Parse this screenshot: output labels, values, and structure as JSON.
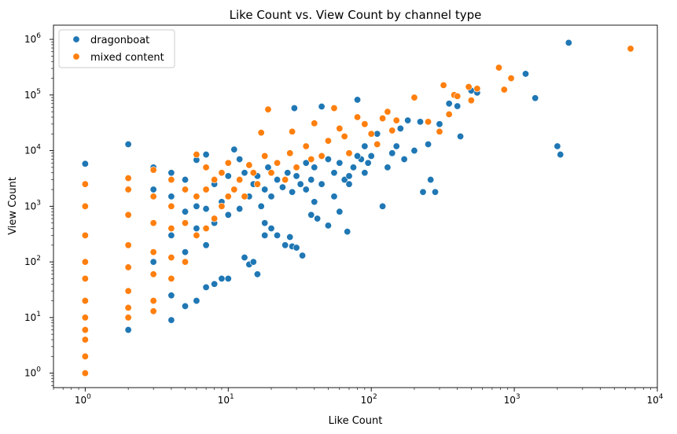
{
  "chart_data": {
    "type": "scatter",
    "title": "Like Count vs. View Count by channel type",
    "xlabel": "Like Count",
    "ylabel": "View Count",
    "xscale": "log",
    "yscale": "log",
    "xlim": [
      0.6,
      10000
    ],
    "ylim": [
      0.55,
      1800000
    ],
    "xticks": [
      {
        "value": 1,
        "base": "10",
        "exp": "0"
      },
      {
        "value": 10,
        "base": "10",
        "exp": "1"
      },
      {
        "value": 100,
        "base": "10",
        "exp": "2"
      },
      {
        "value": 1000,
        "base": "10",
        "exp": "3"
      },
      {
        "value": 10000,
        "base": "10",
        "exp": "4"
      }
    ],
    "yticks": [
      {
        "value": 1,
        "base": "10",
        "exp": "0"
      },
      {
        "value": 10,
        "base": "10",
        "exp": "1"
      },
      {
        "value": 100,
        "base": "10",
        "exp": "2"
      },
      {
        "value": 1000,
        "base": "10",
        "exp": "3"
      },
      {
        "value": 10000,
        "base": "10",
        "exp": "4"
      },
      {
        "value": 100000,
        "base": "10",
        "exp": "5"
      },
      {
        "value": 1000000,
        "base": "10",
        "exp": "6"
      }
    ],
    "legend": {
      "position": "top-left"
    },
    "grid": false,
    "series": [
      {
        "name": "dragonboat",
        "color": "#1f77b4",
        "points": [
          [
            1,
            5800
          ],
          [
            2,
            13000
          ],
          [
            2,
            6
          ],
          [
            4,
            9
          ],
          [
            4,
            25
          ],
          [
            5,
            16
          ],
          [
            6,
            20
          ],
          [
            6,
            6800
          ],
          [
            7,
            8500
          ],
          [
            7,
            35
          ],
          [
            8,
            40
          ],
          [
            9,
            50
          ],
          [
            10,
            50
          ],
          [
            11,
            10500
          ],
          [
            12,
            7000
          ],
          [
            13,
            120
          ],
          [
            14,
            90
          ],
          [
            15,
            100
          ],
          [
            16,
            60
          ],
          [
            18,
            500
          ],
          [
            18,
            300
          ],
          [
            20,
            400
          ],
          [
            22,
            300
          ],
          [
            25,
            200
          ],
          [
            27,
            280
          ],
          [
            28,
            190
          ],
          [
            29,
            58000
          ],
          [
            30,
            180
          ],
          [
            33,
            130
          ],
          [
            35,
            2000
          ],
          [
            38,
            700
          ],
          [
            40,
            1200
          ],
          [
            42,
            600
          ],
          [
            45,
            62000
          ],
          [
            50,
            450
          ],
          [
            55,
            1500
          ],
          [
            60,
            800
          ],
          [
            65,
            3000
          ],
          [
            68,
            350
          ],
          [
            70,
            2500
          ],
          [
            75,
            5000
          ],
          [
            80,
            82000
          ],
          [
            85,
            7000
          ],
          [
            90,
            4000
          ],
          [
            95,
            6000
          ],
          [
            100,
            8000
          ],
          [
            110,
            20000
          ],
          [
            120,
            1000
          ],
          [
            130,
            5000
          ],
          [
            140,
            9000
          ],
          [
            150,
            12000
          ],
          [
            160,
            25000
          ],
          [
            170,
            7000
          ],
          [
            180,
            35000
          ],
          [
            200,
            10000
          ],
          [
            220,
            33000
          ],
          [
            230,
            1800
          ],
          [
            250,
            13000
          ],
          [
            260,
            3000
          ],
          [
            280,
            1800
          ],
          [
            300,
            30000
          ],
          [
            350,
            70000
          ],
          [
            400,
            63000
          ],
          [
            420,
            18000
          ],
          [
            500,
            120000
          ],
          [
            550,
            110000
          ],
          [
            1200,
            240000
          ],
          [
            1400,
            88000
          ],
          [
            2000,
            12000
          ],
          [
            2100,
            8500
          ],
          [
            2400,
            870000
          ],
          [
            3,
            100
          ],
          [
            3,
            500
          ],
          [
            3,
            2000
          ],
          [
            3,
            5000
          ],
          [
            4,
            300
          ],
          [
            4,
            1500
          ],
          [
            4,
            4000
          ],
          [
            5,
            150
          ],
          [
            5,
            800
          ],
          [
            5,
            3000
          ],
          [
            6,
            400
          ],
          [
            6,
            1000
          ],
          [
            7,
            200
          ],
          [
            7,
            900
          ],
          [
            8,
            500
          ],
          [
            8,
            2500
          ],
          [
            9,
            1200
          ],
          [
            10,
            700
          ],
          [
            10,
            3500
          ],
          [
            11,
            2000
          ],
          [
            12,
            900
          ],
          [
            13,
            4000
          ],
          [
            14,
            1500
          ],
          [
            15,
            2500
          ],
          [
            16,
            3500
          ],
          [
            17,
            1000
          ],
          [
            18,
            2000
          ],
          [
            19,
            5000
          ],
          [
            20,
            1500
          ],
          [
            22,
            3000
          ],
          [
            24,
            2200
          ],
          [
            26,
            4000
          ],
          [
            28,
            1800
          ],
          [
            30,
            3500
          ],
          [
            32,
            2500
          ],
          [
            35,
            6000
          ],
          [
            38,
            3000
          ],
          [
            40,
            5000
          ],
          [
            45,
            2500
          ],
          [
            50,
            7000
          ],
          [
            55,
            4000
          ],
          [
            60,
            6000
          ],
          [
            70,
            3500
          ],
          [
            80,
            8000
          ],
          [
            90,
            12000
          ]
        ]
      },
      {
        "name": "mixed content",
        "color": "#ff7f0e",
        "points": [
          [
            1,
            1
          ],
          [
            1,
            2
          ],
          [
            1,
            4
          ],
          [
            1,
            6
          ],
          [
            1,
            10
          ],
          [
            1,
            20
          ],
          [
            1,
            50
          ],
          [
            1,
            100
          ],
          [
            1,
            300
          ],
          [
            1,
            1000
          ],
          [
            1,
            2500
          ],
          [
            2,
            10
          ],
          [
            2,
            15
          ],
          [
            2,
            30
          ],
          [
            2,
            80
          ],
          [
            2,
            200
          ],
          [
            2,
            700
          ],
          [
            2,
            2000
          ],
          [
            2,
            3200
          ],
          [
            3,
            13
          ],
          [
            3,
            20
          ],
          [
            3,
            60
          ],
          [
            3,
            150
          ],
          [
            3,
            500
          ],
          [
            3,
            1500
          ],
          [
            3,
            4500
          ],
          [
            4,
            50
          ],
          [
            4,
            120
          ],
          [
            4,
            400
          ],
          [
            4,
            1000
          ],
          [
            4,
            3000
          ],
          [
            5,
            100
          ],
          [
            5,
            500
          ],
          [
            5,
            2000
          ],
          [
            6,
            8500
          ],
          [
            6,
            300
          ],
          [
            6,
            1500
          ],
          [
            7,
            400
          ],
          [
            7,
            2000
          ],
          [
            7,
            5000
          ],
          [
            8,
            600
          ],
          [
            8,
            3000
          ],
          [
            9,
            1000
          ],
          [
            9,
            4000
          ],
          [
            10,
            1500
          ],
          [
            10,
            6000
          ],
          [
            11,
            2000
          ],
          [
            12,
            3000
          ],
          [
            13,
            1500
          ],
          [
            14,
            5500
          ],
          [
            15,
            4000
          ],
          [
            16,
            2500
          ],
          [
            17,
            21000
          ],
          [
            18,
            8000
          ],
          [
            19,
            55000
          ],
          [
            20,
            4000
          ],
          [
            22,
            6000
          ],
          [
            25,
            3000
          ],
          [
            27,
            9000
          ],
          [
            28,
            22000
          ],
          [
            30,
            5000
          ],
          [
            35,
            12000
          ],
          [
            38,
            7000
          ],
          [
            40,
            31000
          ],
          [
            45,
            8000
          ],
          [
            50,
            15000
          ],
          [
            55,
            58000
          ],
          [
            60,
            25000
          ],
          [
            65,
            18000
          ],
          [
            70,
            9000
          ],
          [
            80,
            40000
          ],
          [
            90,
            30000
          ],
          [
            100,
            20000
          ],
          [
            110,
            13000
          ],
          [
            120,
            38000
          ],
          [
            130,
            50000
          ],
          [
            140,
            23000
          ],
          [
            150,
            35000
          ],
          [
            200,
            90000
          ],
          [
            250,
            33000
          ],
          [
            300,
            22000
          ],
          [
            320,
            150000
          ],
          [
            350,
            45000
          ],
          [
            380,
            100000
          ],
          [
            400,
            95000
          ],
          [
            480,
            140000
          ],
          [
            500,
            80000
          ],
          [
            550,
            130000
          ],
          [
            780,
            310000
          ],
          [
            850,
            125000
          ],
          [
            950,
            200000
          ],
          [
            6500,
            680000
          ]
        ]
      }
    ]
  }
}
